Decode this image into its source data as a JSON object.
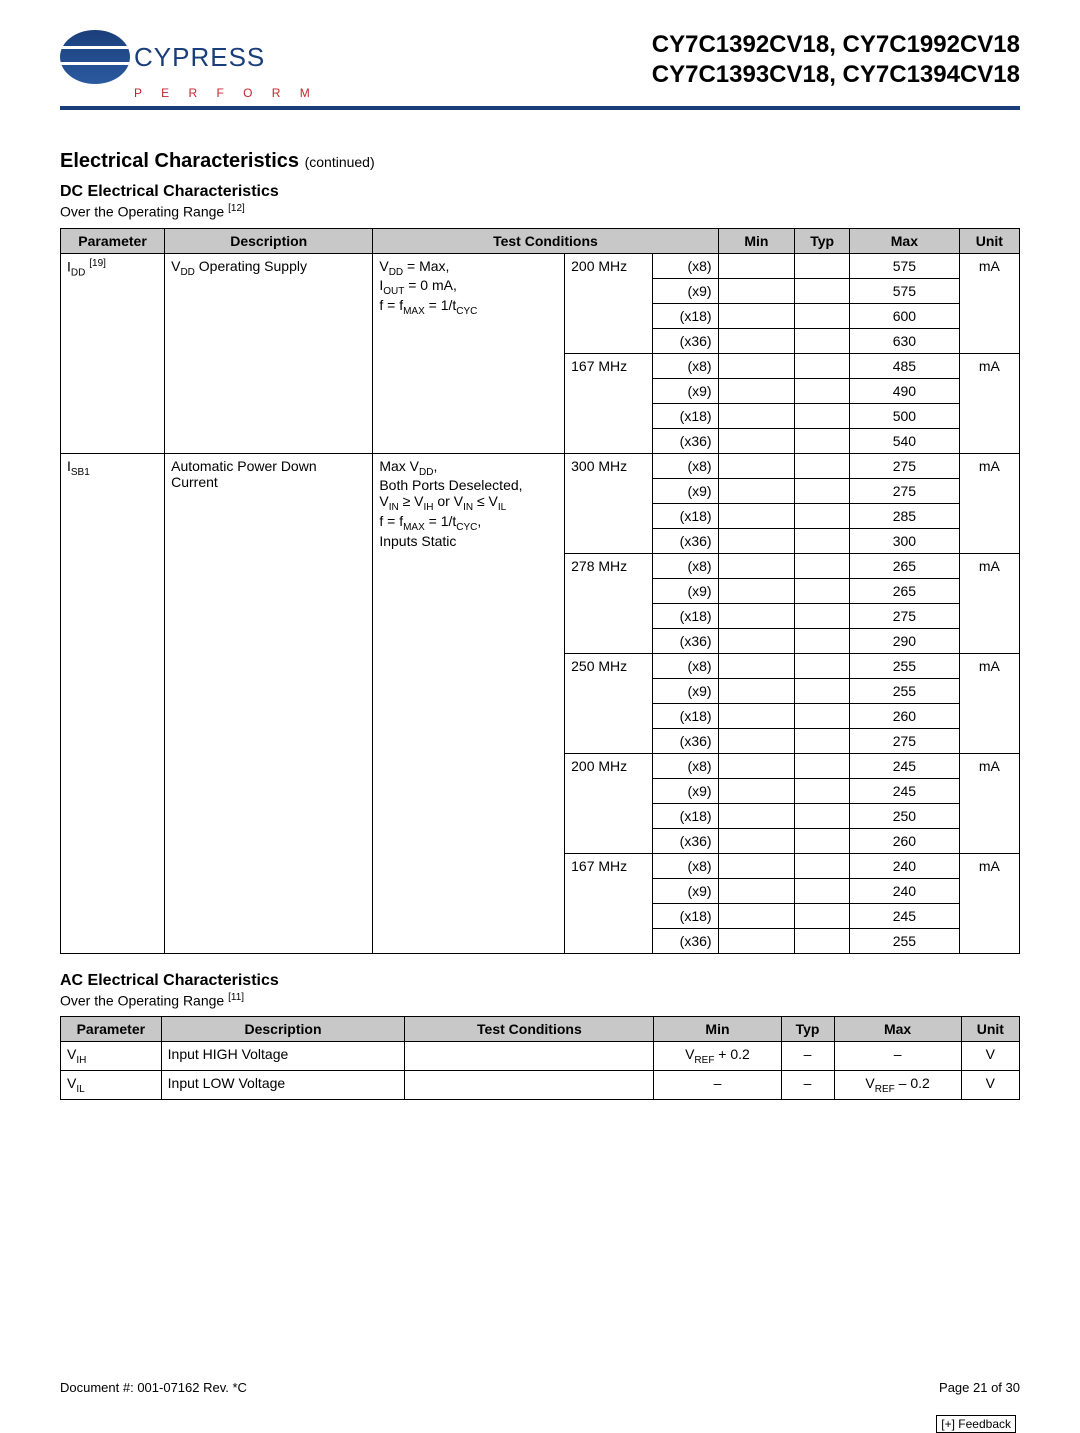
{
  "header": {
    "company": "CYPRESS",
    "tagline": "P E R F O R M",
    "parts_line1": "CY7C1392CV18, CY7C1992CV18",
    "parts_line2": "CY7C1393CV18, CY7C1394CV18"
  },
  "section": {
    "title": "Electrical Characteristics",
    "continued": "(continued)"
  },
  "dc": {
    "heading": "DC Electrical Characteristics",
    "range_prefix": "Over the Operating Range ",
    "range_note": "[12]",
    "cols": {
      "param": "Parameter",
      "desc": "Description",
      "cond": "Test Conditions",
      "min": "Min",
      "typ": "Typ",
      "max": "Max",
      "unit": "Unit"
    },
    "groups": [
      {
        "param_html": "I<sub>DD</sub> <sup>[19]</sup>",
        "desc_html": "V<sub>DD</sub> Operating Supply",
        "cond_html": "V<sub>DD</sub> = Max,<br>I<sub>OUT</sub> = 0 mA,<br>f = f<sub>MAX</sub> = 1/t<sub>CYC</sub>",
        "freqs": [
          {
            "label": "200 MHz",
            "unit": "mA",
            "rows": [
              {
                "w": "(x8)",
                "max": "575"
              },
              {
                "w": "(x9)",
                "max": "575"
              },
              {
                "w": "(x18)",
                "max": "600"
              },
              {
                "w": "(x36)",
                "max": "630"
              }
            ]
          },
          {
            "label": "167 MHz",
            "unit": "mA",
            "rows": [
              {
                "w": "(x8)",
                "max": "485"
              },
              {
                "w": "(x9)",
                "max": "490"
              },
              {
                "w": "(x18)",
                "max": "500"
              },
              {
                "w": "(x36)",
                "max": "540"
              }
            ]
          }
        ]
      },
      {
        "param_html": "I<sub>SB1</sub>",
        "desc_html": "Automatic Power Down Current",
        "cond_html": "Max V<sub>DD</sub>,<br>Both Ports Deselected,<br>V<sub>IN</sub> ≥ V<sub>IH</sub> or V<sub>IN</sub> ≤ V<sub>IL</sub><br>f = f<sub>MAX</sub> = 1/t<sub>CYC</sub>,<br>Inputs Static",
        "freqs": [
          {
            "label": "300 MHz",
            "unit": "mA",
            "rows": [
              {
                "w": "(x8)",
                "max": "275"
              },
              {
                "w": "(x9)",
                "max": "275"
              },
              {
                "w": "(x18)",
                "max": "285"
              },
              {
                "w": "(x36)",
                "max": "300"
              }
            ]
          },
          {
            "label": "278 MHz",
            "unit": "mA",
            "rows": [
              {
                "w": "(x8)",
                "max": "265"
              },
              {
                "w": "(x9)",
                "max": "265"
              },
              {
                "w": "(x18)",
                "max": "275"
              },
              {
                "w": "(x36)",
                "max": "290"
              }
            ]
          },
          {
            "label": "250 MHz",
            "unit": "mA",
            "rows": [
              {
                "w": "(x8)",
                "max": "255"
              },
              {
                "w": "(x9)",
                "max": "255"
              },
              {
                "w": "(x18)",
                "max": "260"
              },
              {
                "w": "(x36)",
                "max": "275"
              }
            ]
          },
          {
            "label": "200 MHz",
            "unit": "mA",
            "rows": [
              {
                "w": "(x8)",
                "max": "245"
              },
              {
                "w": "(x9)",
                "max": "245"
              },
              {
                "w": "(x18)",
                "max": "250"
              },
              {
                "w": "(x36)",
                "max": "260"
              }
            ]
          },
          {
            "label": "167 MHz",
            "unit": "mA",
            "rows": [
              {
                "w": "(x8)",
                "max": "240"
              },
              {
                "w": "(x9)",
                "max": "240"
              },
              {
                "w": "(x18)",
                "max": "245"
              },
              {
                "w": "(x36)",
                "max": "255"
              }
            ]
          }
        ]
      }
    ]
  },
  "ac": {
    "heading": "AC Electrical Characteristics",
    "range_prefix": "Over the Operating Range ",
    "range_note": "[11]",
    "cols": {
      "param": "Parameter",
      "desc": "Description",
      "cond": "Test Conditions",
      "min": "Min",
      "typ": "Typ",
      "max": "Max",
      "unit": "Unit"
    },
    "rows": [
      {
        "param_html": "V<sub>IH</sub>",
        "desc": "Input HIGH Voltage",
        "cond": "",
        "min_html": "V<sub>REF</sub> + 0.2",
        "typ": "–",
        "max_html": "–",
        "unit": "V"
      },
      {
        "param_html": "V<sub>IL</sub>",
        "desc": "Input LOW Voltage",
        "cond": "",
        "min_html": "–",
        "typ": "–",
        "max_html": "V<sub>REF</sub> – 0.2",
        "unit": "V"
      }
    ]
  },
  "footer": {
    "doc": "Document #: 001-07162 Rev. *C",
    "page": "Page 21 of 30",
    "feedback": "[+] Feedback"
  },
  "style": {
    "header_bg": "#c8c8c8",
    "rule_color": "#1a3e7a",
    "logo_blue": "#1a3e7a",
    "perform_red": "#c1272d",
    "font_family": "Arial"
  }
}
